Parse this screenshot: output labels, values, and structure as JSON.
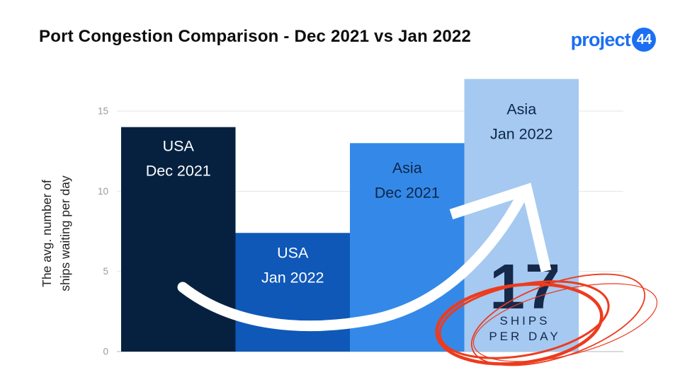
{
  "slide": {
    "title": "Port Congestion Comparison - Dec 2021 vs Jan 2022"
  },
  "logo": {
    "word": "project",
    "number": "44",
    "color": "#1b6ff2"
  },
  "colors": {
    "grid": "#e4e4e4",
    "axis": "#dadada",
    "tick": "#9b9b9b"
  },
  "chart_data": {
    "type": "bar",
    "title": "Port Congestion Comparison - Dec 2021 vs Jan 2022",
    "ylabel": "The avg. number of ships waiting per day",
    "ylabel_lines": [
      "The avg. number of",
      "ships waiting per day"
    ],
    "categories": [
      "USA Dec 2021",
      "USA Jan 2022",
      "Asia Dec 2021",
      "Asia Jan 2022"
    ],
    "category_lines": [
      [
        "USA",
        "Dec 2021"
      ],
      [
        "USA",
        "Jan 2022"
      ],
      [
        "Asia",
        "Dec 2021"
      ],
      [
        "Asia",
        "Jan 2022"
      ]
    ],
    "values": [
      14,
      7.4,
      13,
      17
    ],
    "bar_colors": [
      "#062140",
      "#0f58b8",
      "#3489e8",
      "#a5c9f1"
    ],
    "bar_label_colors": [
      "#ffffff",
      "#ffffff",
      "#0d2547",
      "#0d2547"
    ],
    "yticks": [
      0,
      5,
      10,
      15
    ],
    "ylim": [
      0,
      17.5
    ],
    "grid": true,
    "legend": false
  },
  "annotation": {
    "big_number": "17",
    "caption_line1": "SHIPS",
    "caption_line2": "PER DAY",
    "text_color": "#15294a",
    "circle_color": "#ed3b1e",
    "arrow_color": "#ffffff"
  }
}
